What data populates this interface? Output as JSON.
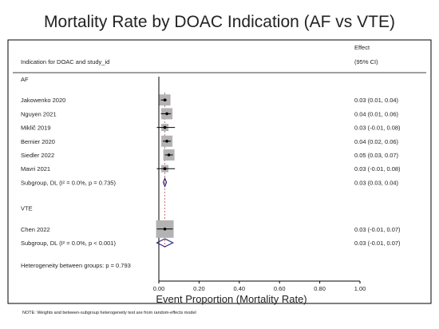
{
  "chart_data": {
    "type": "forest",
    "title": "Mortality Rate by DOAC Indication (AF vs VTE)",
    "column_header": "Indication for DOAC and study_id",
    "effect_header": "Effect",
    "ci_header": "(95% CI)",
    "groups": [
      {
        "name": "AF",
        "studies": [
          {
            "label": "Jakowenko 2020",
            "effect": 0.03,
            "lower": 0.01,
            "upper": 0.04,
            "effect_text": "0.03 (0.01, 0.04)"
          },
          {
            "label": "Nguyen 2021",
            "effect": 0.04,
            "lower": 0.01,
            "upper": 0.06,
            "effect_text": "0.04 (0.01, 0.06)"
          },
          {
            "label": "Miklič 2019",
            "effect": 0.03,
            "lower": -0.01,
            "upper": 0.08,
            "effect_text": "0.03 (-0.01, 0.08)"
          },
          {
            "label": "Bernier 2020",
            "effect": 0.04,
            "lower": 0.02,
            "upper": 0.06,
            "effect_text": "0.04 (0.02, 0.06)"
          },
          {
            "label": "Siedler 2022",
            "effect": 0.05,
            "lower": 0.03,
            "upper": 0.07,
            "effect_text": "0.05 (0.03, 0.07)"
          },
          {
            "label": "Mavri 2021",
            "effect": 0.03,
            "lower": -0.01,
            "upper": 0.08,
            "effect_text": "0.03 (-0.01, 0.08)"
          }
        ],
        "subgroup": {
          "label": "Subgroup, DL (I² = 0.0%, p = 0.735)",
          "effect": 0.03,
          "lower": 0.03,
          "upper": 0.04,
          "effect_text": "0.03 (0.03, 0.04)"
        }
      },
      {
        "name": "VTE",
        "studies": [
          {
            "label": "Chen 2022",
            "effect": 0.03,
            "lower": -0.01,
            "upper": 0.07,
            "effect_text": "0.03 (-0.01, 0.07)"
          }
        ],
        "subgroup": {
          "label": "Subgroup, DL (I² = 0.0%, p < 0.001)",
          "effect": 0.03,
          "lower": -0.01,
          "upper": 0.07,
          "effect_text": "0.03 (-0.01, 0.07)"
        }
      }
    ],
    "heterogeneity": "Heterogeneity between groups: p = 0.793",
    "xlabel": "Event Proportion (Mortality Rate)",
    "xticks": [
      0.0,
      0.2,
      0.4,
      0.6,
      0.8,
      1.0
    ],
    "xtick_labels": [
      "0.00",
      "0.20",
      "0.40",
      "0.60",
      "0.80",
      "1.00"
    ],
    "xlim": [
      0,
      1
    ],
    "note": "NOTE: Weights and between-subgroup heterogeneity test are from random-effects model",
    "colors": {
      "weight_box": "#b3b3b3",
      "subgroup_diamond": "#2f2a7a",
      "reference_line": "#c0504d",
      "text": "#222222",
      "title": "#1f2a4d"
    }
  }
}
